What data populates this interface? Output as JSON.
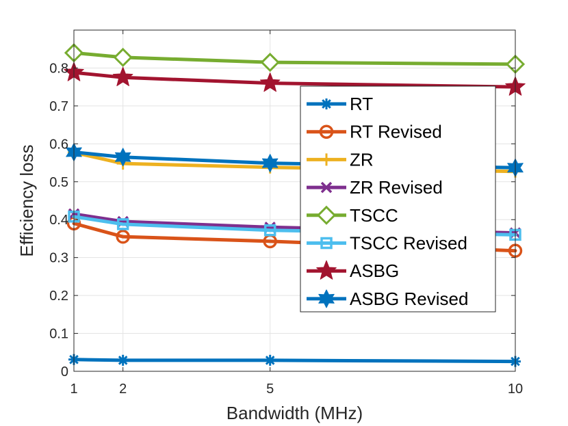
{
  "chart_data": {
    "type": "line",
    "title": "",
    "xlabel": "Bandwidth (MHz)",
    "ylabel": "Efficiency loss",
    "x": [
      1,
      2,
      5,
      10
    ],
    "x_ticks": [
      "1",
      "2",
      "5",
      "10"
    ],
    "xlim": [
      1,
      10
    ],
    "y_ticks": [
      "0",
      "0.1",
      "0.2",
      "0.3",
      "0.4",
      "0.5",
      "0.6",
      "0.7",
      "0.8"
    ],
    "ylim": [
      0,
      0.9
    ],
    "grid": true,
    "legend_position": "top-right",
    "series": [
      {
        "name": "RT",
        "values": [
          0.031,
          0.029,
          0.029,
          0.026
        ],
        "color": "#0072BD",
        "marker": "star-asterisk"
      },
      {
        "name": "RT Revised",
        "values": [
          0.39,
          0.355,
          0.343,
          0.318
        ],
        "color": "#D95319",
        "marker": "circle"
      },
      {
        "name": "ZR",
        "values": [
          0.577,
          0.548,
          0.538,
          0.527
        ],
        "color": "#EDB120",
        "marker": "plus"
      },
      {
        "name": "ZR Revised",
        "values": [
          0.415,
          0.395,
          0.38,
          0.365
        ],
        "color": "#7E2F8E",
        "marker": "x"
      },
      {
        "name": "TSCC",
        "values": [
          0.84,
          0.828,
          0.815,
          0.81
        ],
        "color": "#77AC30",
        "marker": "diamond"
      },
      {
        "name": "TSCC Revised",
        "values": [
          0.408,
          0.388,
          0.372,
          0.36
        ],
        "color": "#4DBEEE",
        "marker": "square"
      },
      {
        "name": "ASBG",
        "values": [
          0.788,
          0.775,
          0.76,
          0.75
        ],
        "color": "#A2142F",
        "marker": "pentagram"
      },
      {
        "name": "ASBG Revised",
        "values": [
          0.578,
          0.565,
          0.549,
          0.537
        ],
        "color": "#0072BD",
        "marker": "hexagram"
      }
    ]
  }
}
